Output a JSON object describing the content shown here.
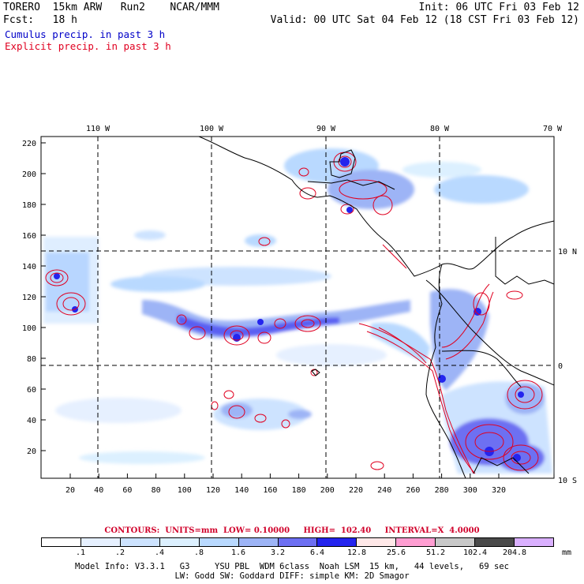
{
  "header": {
    "left_line1": "TORERO  15km ARW   Run2    NCAR/MMM",
    "left_line2": "Fcst:   18 h",
    "right_line1": "Init: 06 UTC Fri 03 Feb 12",
    "right_line2": "Valid: 00 UTC Sat 04 Feb 12 (18 CST Fri 03 Feb 12)"
  },
  "legend": {
    "cumulus": "Cumulus precip. in past 3 h",
    "explicit": "Explicit precip. in past 3 h",
    "cumulus_color": "#0000c8",
    "explicit_color": "#e00020"
  },
  "map": {
    "top_lon_labels": [
      "110 W",
      "100 W",
      "90 W",
      "80 W",
      "70 W"
    ],
    "right_lat_labels": [
      "10 N",
      "0",
      "10 S"
    ],
    "left_y_ticks": [
      "220",
      "200",
      "180",
      "160",
      "140",
      "120",
      "100",
      "80",
      "60",
      "40",
      "20"
    ],
    "bottom_x_ticks": [
      "20",
      "40",
      "60",
      "80",
      "100",
      "120",
      "140",
      "160",
      "180",
      "200",
      "220",
      "240",
      "260",
      "280",
      "300",
      "320"
    ]
  },
  "footer": {
    "contours_text": "CONTOURS:  UNITS=mm  LOW= 0.10000     HIGH=  102.40     INTERVAL=X  4.0000",
    "colorbar_labels": [
      ".1",
      ".2",
      ".4",
      ".8",
      "1.6",
      "3.2",
      "6.4",
      "12.8",
      "25.6",
      "51.2",
      "102.4",
      "204.8"
    ],
    "colorbar_colors": [
      "#ffffff",
      "#e6f0ff",
      "#cde3ff",
      "#dcf0ff",
      "#b9d9ff",
      "#9db4f6",
      "#6d6ff2",
      "#2424ee",
      "#ffe8e8",
      "#ff9ed2",
      "#c8c8c8",
      "#4a4a4a",
      "#dab0ff"
    ],
    "units": "mm",
    "model_info_line1": "Model Info: V3.3.1   G3     YSU PBL  WDM 6class  Noah LSM  15 km,   44 levels,   69 sec",
    "model_info_line2": "LW: Godd SW: Goddard DIFF: simple KM: 2D Smagor"
  }
}
